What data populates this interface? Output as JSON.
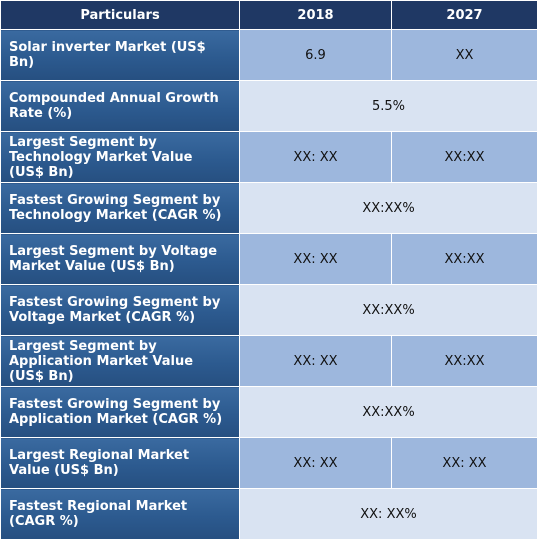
{
  "table": {
    "headers": [
      "Particulars",
      "2018",
      "2027"
    ],
    "rows": [
      {
        "label": "Solar inverter Market (US$ Bn)",
        "v2018": "6.9",
        "v2027": "XX"
      },
      {
        "label": "Compounded Annual Growth Rate (%)",
        "merged": "5.5%"
      },
      {
        "label": "Largest Segment by Technology Market Value (US$ Bn)",
        "v2018": "XX: XX",
        "v2027": "XX:XX"
      },
      {
        "label": "Fastest Growing Segment by Technology Market (CAGR %)",
        "merged": "XX:XX%"
      },
      {
        "label": "Largest Segment by Voltage Market Value (US$ Bn)",
        "v2018": "XX: XX",
        "v2027": "XX:XX"
      },
      {
        "label": "Fastest Growing Segment by Voltage Market (CAGR %)",
        "merged": "XX:XX%"
      },
      {
        "label": "Largest Segment by Application Market Value (US$ Bn)",
        "v2018": "XX: XX",
        "v2027": "XX:XX"
      },
      {
        "label": "Fastest Growing Segment by Application Market (CAGR %)",
        "merged": "XX:XX%"
      },
      {
        "label": "Largest Regional Market Value (US$ Bn)",
        "v2018": "XX: XX",
        "v2027": "XX: XX"
      },
      {
        "label": "Fastest Regional Market (CAGR %)",
        "merged": "XX: XX%"
      }
    ]
  },
  "colors": {
    "header_bg": "#1f3864",
    "label_bg": "#2c5a8f",
    "split_value_bg": "#9db7dd",
    "merged_value_bg": "#d9e3f2"
  }
}
